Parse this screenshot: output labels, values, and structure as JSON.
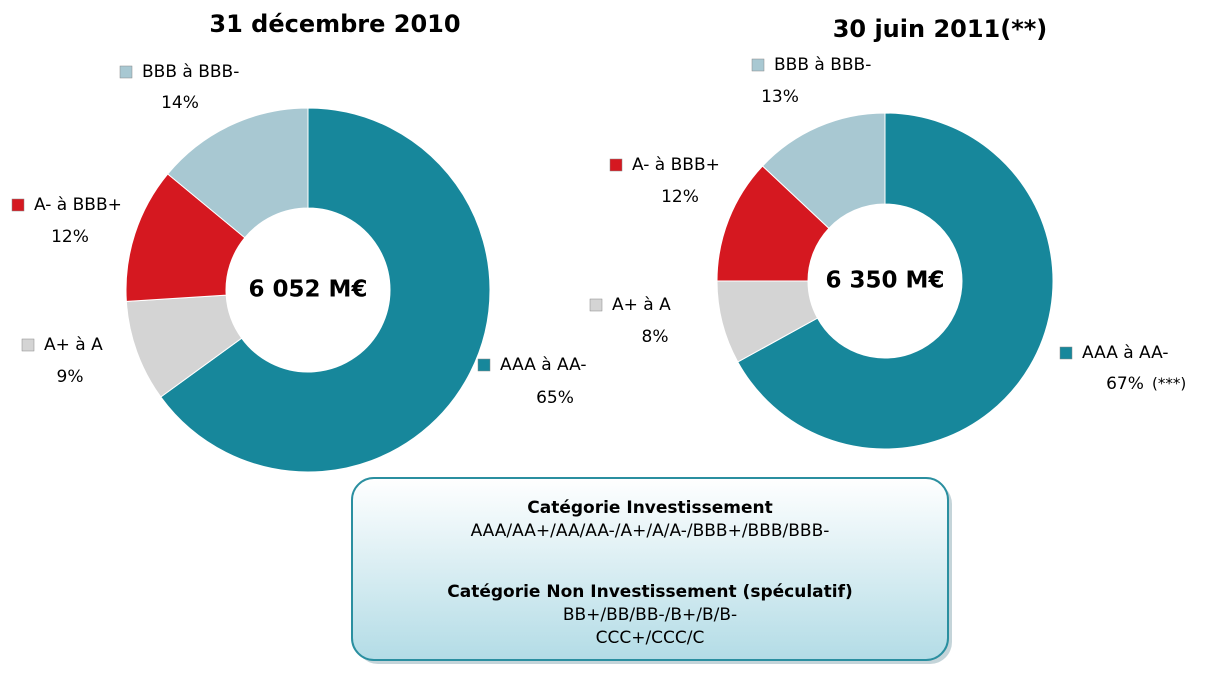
{
  "chart_data": [
    {
      "type": "donut",
      "title": "31 décembre 2010",
      "center_label": "6 052 M€",
      "categories": [
        "AAA à AA-",
        "A+ à A",
        "A- à BBB+",
        "BBB à BBB-"
      ],
      "values": [
        65,
        9,
        12,
        14
      ],
      "value_labels": [
        "65%",
        "9%",
        "12%",
        "14%"
      ],
      "colors": [
        "#17879b",
        "#d4d4d4",
        "#d51820",
        "#a8c8d2"
      ]
    },
    {
      "type": "donut",
      "title": "30 juin 2011(**)",
      "center_label": "6 350 M€",
      "categories": [
        "AAA à AA-",
        "A+ à A",
        "A- à BBB+",
        "BBB à BBB-"
      ],
      "values": [
        67,
        8,
        12,
        13
      ],
      "value_labels": [
        "67%",
        "8%",
        "12%",
        "13%"
      ],
      "colors": [
        "#17879b",
        "#d4d4d4",
        "#d51820",
        "#a8c8d2"
      ],
      "annotation": "(***)"
    }
  ],
  "info_box": {
    "lines": [
      "Catégorie Investissement",
      "AAA/AA+/AA/AA-/A+/A/A-/BBB+/BBB/BBB-",
      "Catégorie Non Investissement (spéculatif)",
      "BB+/BB/BB-/B+/B/B-",
      "CCC+/CCC/C"
    ]
  }
}
